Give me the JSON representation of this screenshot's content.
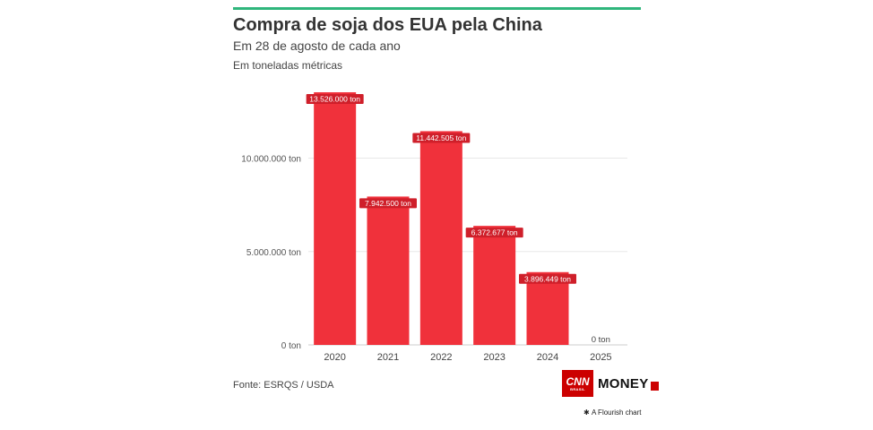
{
  "header": {
    "title": "Compra de soja dos EUA pela China",
    "subtitle": "Em 28 de agosto de cada ano",
    "unit_note": "Em toneladas métricas"
  },
  "footer": {
    "source": "Fonte: ESRQS / USDA",
    "logo_text": "CNN",
    "logo_subtext": "BRASIL",
    "logo_money": "MONEY",
    "flourish_credit": "A Flourish chart"
  },
  "colors": {
    "bar": "#f0313b",
    "accent_bar": "#2fb67c",
    "label_bg": "#cf1f2a"
  },
  "chart_data": {
    "type": "bar",
    "categories": [
      "2020",
      "2021",
      "2022",
      "2023",
      "2024",
      "2025"
    ],
    "values": [
      13526000,
      7942500,
      11442505,
      6372677,
      3896449,
      0
    ],
    "value_labels": [
      "13.526.000 ton",
      "7.942.500 ton",
      "11.442.505 ton",
      "6.372.677 ton",
      "3.896.449 ton",
      "0 ton"
    ],
    "y_ticks": [
      0,
      5000000,
      10000000
    ],
    "y_tick_labels": [
      "0 ton",
      "5.000.000 ton",
      "10.000.000 ton"
    ],
    "ylim": [
      0,
      13526000
    ],
    "grid": true,
    "legend": "none"
  }
}
